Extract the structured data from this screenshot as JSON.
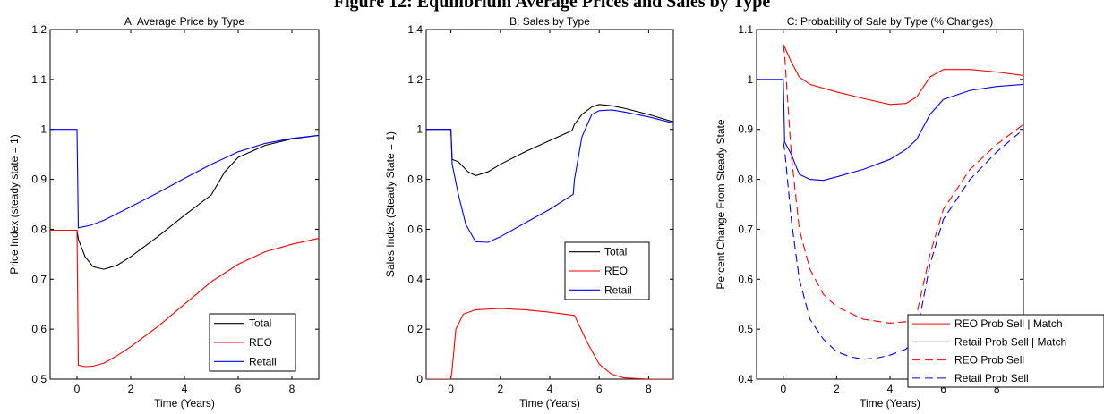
{
  "figure": {
    "title": "Figure 12: Equilibrium Average Prices and Sales by Type"
  },
  "chart_data": [
    {
      "type": "line",
      "title": "A: Average Price by Type",
      "xlabel": "Time (Years)",
      "ylabel": "Price Index (steady state = 1)",
      "xlim": [
        -1,
        9
      ],
      "ylim": [
        0.5,
        1.2
      ],
      "xticks": [
        0,
        2,
        4,
        6,
        8
      ],
      "yticks": [
        0.5,
        0.6,
        0.7,
        0.8,
        0.9,
        1,
        1.1,
        1.2
      ],
      "ytick_labels": [
        "0.5",
        "0.6",
        "0.7",
        "0.8",
        "0.9",
        "1",
        "1.1",
        "1.2"
      ],
      "legend": {
        "position": "bottom-right"
      },
      "series": [
        {
          "name": "Total",
          "color": "#000000",
          "dash": "solid",
          "legend": true,
          "x": [
            -1,
            0,
            0.05,
            0.3,
            0.6,
            1,
            1.5,
            2,
            3,
            4,
            5,
            5.5,
            6,
            7,
            8,
            9
          ],
          "y": [
            0.798,
            0.798,
            0.78,
            0.745,
            0.725,
            0.72,
            0.728,
            0.745,
            0.785,
            0.828,
            0.869,
            0.915,
            0.944,
            0.968,
            0.981,
            0.988
          ]
        },
        {
          "name": "REO",
          "color": "#ff0000",
          "dash": "solid",
          "legend": true,
          "x": [
            -1,
            0,
            0.05,
            0.3,
            0.6,
            1,
            1.5,
            2,
            3,
            4,
            5,
            6,
            7,
            8,
            9
          ],
          "y": [
            0.798,
            0.798,
            0.528,
            0.525,
            0.526,
            0.532,
            0.547,
            0.565,
            0.605,
            0.65,
            0.695,
            0.73,
            0.755,
            0.77,
            0.782
          ]
        },
        {
          "name": "Retail",
          "color": "#0000ff",
          "dash": "solid",
          "legend": true,
          "x": [
            -1,
            0,
            0.05,
            0.5,
            1,
            2,
            3,
            4,
            5,
            6,
            7,
            8,
            9
          ],
          "y": [
            1,
            1,
            0.803,
            0.808,
            0.818,
            0.845,
            0.873,
            0.902,
            0.93,
            0.955,
            0.972,
            0.982,
            0.988
          ]
        }
      ]
    },
    {
      "type": "line",
      "title": "B: Sales by Type",
      "xlabel": "Time (Years)",
      "ylabel": "Sales Index (Steady State = 1)",
      "xlim": [
        -1,
        9
      ],
      "ylim": [
        0,
        1.4
      ],
      "xticks": [
        0,
        2,
        4,
        6,
        8
      ],
      "yticks": [
        0,
        0.2,
        0.4,
        0.6,
        0.8,
        1,
        1.2,
        1.4
      ],
      "ytick_labels": [
        "0",
        "0.2",
        "0.4",
        "0.6",
        "0.8",
        "1",
        "1.2",
        "1.4"
      ],
      "legend": {
        "position": "right"
      },
      "series": [
        {
          "name": "Total",
          "color": "#000000",
          "dash": "solid",
          "legend": true,
          "x": [
            -1,
            0,
            0.05,
            0.3,
            0.7,
            1,
            1.5,
            2,
            3,
            4,
            4.9,
            5.0,
            5.3,
            5.7,
            6,
            6.5,
            7,
            8,
            9
          ],
          "y": [
            1,
            1,
            0.88,
            0.87,
            0.83,
            0.815,
            0.83,
            0.86,
            0.91,
            0.955,
            0.995,
            1.02,
            1.06,
            1.09,
            1.1,
            1.095,
            1.085,
            1.06,
            1.03
          ]
        },
        {
          "name": "REO",
          "color": "#ff0000",
          "dash": "solid",
          "legend": true,
          "x": [
            -1,
            0,
            0.05,
            0.2,
            0.5,
            1,
            2,
            3,
            4,
            5,
            5.5,
            6,
            6.5,
            7,
            8,
            9
          ],
          "y": [
            0,
            0,
            0.04,
            0.2,
            0.26,
            0.278,
            0.283,
            0.278,
            0.268,
            0.255,
            0.15,
            0.06,
            0.02,
            0.005,
            0,
            0
          ]
        },
        {
          "name": "Retail",
          "color": "#0000ff",
          "dash": "solid",
          "legend": true,
          "x": [
            -1,
            0,
            0.05,
            0.3,
            0.6,
            1,
            1.5,
            2,
            3,
            4,
            4.95,
            5.0,
            5.3,
            5.7,
            6,
            6.5,
            7,
            8,
            9
          ],
          "y": [
            1,
            1,
            0.86,
            0.74,
            0.62,
            0.55,
            0.548,
            0.57,
            0.625,
            0.68,
            0.74,
            0.8,
            0.97,
            1.06,
            1.075,
            1.078,
            1.07,
            1.05,
            1.025
          ]
        }
      ]
    },
    {
      "type": "line",
      "title": "C: Probability of Sale by Type (% Changes)",
      "xlabel": "Time (Years)",
      "ylabel": "Percent Change From Steady State",
      "xlim": [
        -1,
        9
      ],
      "ylim": [
        0.4,
        1.1
      ],
      "xticks": [
        0,
        2,
        4,
        6,
        8
      ],
      "yticks": [
        0.4,
        0.5,
        0.6,
        0.7,
        0.8,
        0.9,
        1,
        1.1
      ],
      "ytick_labels": [
        "0.4",
        "0.5",
        "0.6",
        "0.7",
        "0.8",
        "0.9",
        "1",
        "1.1"
      ],
      "legend": {
        "position": "bottom-right"
      },
      "series": [
        {
          "name": "REO Prob Sell | Match",
          "color": "#ff0000",
          "dash": "solid",
          "legend": true,
          "x": [
            0,
            0.05,
            0.3,
            0.6,
            1,
            2,
            3,
            4,
            4.6,
            5,
            5.5,
            6,
            7,
            8,
            9
          ],
          "y": [
            1.07,
            1.065,
            1.035,
            1.005,
            0.99,
            0.975,
            0.962,
            0.95,
            0.952,
            0.965,
            1.005,
            1.02,
            1.02,
            1.015,
            1.008
          ]
        },
        {
          "name": "Retail Prob Sell | Match",
          "color": "#0000ff",
          "dash": "solid",
          "legend": true,
          "x": [
            -1,
            0,
            0.05,
            0.3,
            0.6,
            1,
            1.5,
            2,
            3,
            4,
            4.6,
            5,
            5.5,
            6,
            7,
            8,
            9
          ],
          "y": [
            1,
            1,
            0.875,
            0.85,
            0.81,
            0.8,
            0.798,
            0.805,
            0.82,
            0.84,
            0.86,
            0.88,
            0.93,
            0.96,
            0.978,
            0.986,
            0.99
          ]
        },
        {
          "name": "REO Prob Sell",
          "color": "#ff0000",
          "dash": "dashed",
          "legend": true,
          "x": [
            0,
            0.05,
            0.3,
            0.6,
            1,
            1.5,
            2,
            3,
            4,
            4.6,
            5,
            5.5,
            6,
            7,
            8,
            9
          ],
          "y": [
            1.07,
            1.05,
            0.85,
            0.7,
            0.62,
            0.57,
            0.545,
            0.52,
            0.512,
            0.515,
            0.53,
            0.65,
            0.74,
            0.82,
            0.87,
            0.91
          ]
        },
        {
          "name": "Retail Prob Sell",
          "color": "#0000ff",
          "dash": "dashed",
          "legend": true,
          "x": [
            0,
            0.05,
            0.3,
            0.6,
            1,
            1.5,
            2,
            2.5,
            3,
            3.5,
            4,
            4.6,
            5,
            5.5,
            6,
            7,
            8,
            9
          ],
          "y": [
            0.875,
            0.86,
            0.72,
            0.6,
            0.52,
            0.48,
            0.455,
            0.445,
            0.44,
            0.442,
            0.448,
            0.46,
            0.49,
            0.63,
            0.72,
            0.8,
            0.855,
            0.9
          ]
        },
        {
          "name": "",
          "color": "#0000ff",
          "dash": "solid",
          "legend": false,
          "x": [
            -1,
            0
          ],
          "y": [
            1,
            1
          ]
        }
      ]
    }
  ]
}
